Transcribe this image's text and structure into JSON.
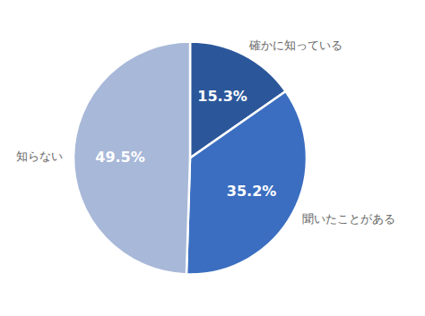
{
  "chart_data": {
    "type": "pie",
    "categories": [
      "確かに知っている",
      "聞いたことがある",
      "知らない"
    ],
    "values": [
      15.3,
      35.2,
      49.5
    ],
    "value_labels": [
      "15.3%",
      "35.2%",
      "49.5%"
    ],
    "colors": [
      "#2B579A",
      "#3B6EC0",
      "#A8B8D8"
    ],
    "data_labels": true
  }
}
